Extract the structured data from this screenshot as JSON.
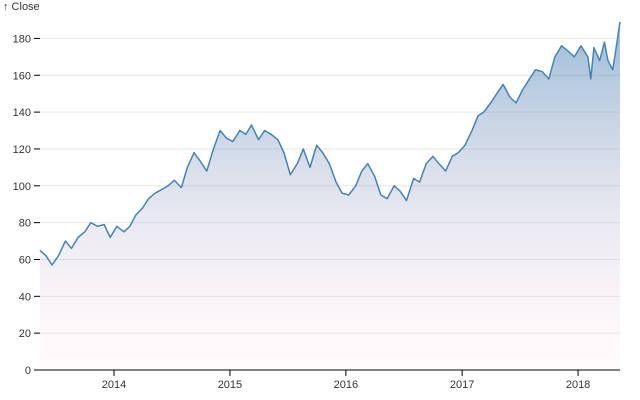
{
  "chart_data": {
    "type": "area",
    "title": "",
    "ylabel": "↑ Close",
    "xlabel": "",
    "ylim": [
      0,
      190
    ],
    "xlim": [
      "2013-05-13",
      "2018-05-13"
    ],
    "y_ticks": [
      0,
      20,
      40,
      60,
      80,
      100,
      120,
      140,
      160,
      180
    ],
    "x_ticks": [
      {
        "date": "2014-01-01",
        "label": "2014"
      },
      {
        "date": "2015-01-01",
        "label": "2015"
      },
      {
        "date": "2016-01-01",
        "label": "2016"
      },
      {
        "date": "2017-01-01",
        "label": "2017"
      },
      {
        "date": "2018-01-01",
        "label": "2018"
      }
    ],
    "grid": true,
    "colors": {
      "line": "#4682b4",
      "fill_top": "#4682b4",
      "fill_bottom": "#ffd1dc"
    },
    "series": [
      {
        "x": [
          "2013-05-13",
          "2013-06-01",
          "2013-06-20",
          "2013-07-10",
          "2013-08-01",
          "2013-08-20",
          "2013-09-10",
          "2013-10-01",
          "2013-10-20",
          "2013-11-10",
          "2013-12-01",
          "2013-12-20",
          "2014-01-10",
          "2014-02-01",
          "2014-02-20",
          "2014-03-10",
          "2014-04-01",
          "2014-04-20",
          "2014-05-10",
          "2014-06-01",
          "2014-06-20",
          "2014-07-10",
          "2014-08-01",
          "2014-08-20",
          "2014-09-10",
          "2014-10-01",
          "2014-10-20",
          "2014-11-10",
          "2014-12-01",
          "2014-12-20",
          "2015-01-10",
          "2015-02-01",
          "2015-02-20",
          "2015-03-10",
          "2015-04-01",
          "2015-04-20",
          "2015-05-10",
          "2015-06-01",
          "2015-06-20",
          "2015-07-10",
          "2015-08-01",
          "2015-08-20",
          "2015-09-10",
          "2015-10-01",
          "2015-10-20",
          "2015-11-10",
          "2015-12-01",
          "2015-12-20",
          "2016-01-10",
          "2016-02-01",
          "2016-02-20",
          "2016-03-10",
          "2016-04-01",
          "2016-04-20",
          "2016-05-10",
          "2016-06-01",
          "2016-06-20",
          "2016-07-10",
          "2016-08-01",
          "2016-08-20",
          "2016-09-10",
          "2016-10-01",
          "2016-10-20",
          "2016-11-10",
          "2016-12-01",
          "2016-12-20",
          "2017-01-10",
          "2017-02-01",
          "2017-02-20",
          "2017-03-10",
          "2017-04-01",
          "2017-04-20",
          "2017-05-10",
          "2017-06-01",
          "2017-06-20",
          "2017-07-10",
          "2017-08-01",
          "2017-08-20",
          "2017-09-10",
          "2017-10-01",
          "2017-10-20",
          "2017-11-10",
          "2017-12-01",
          "2017-12-20",
          "2018-01-10",
          "2018-02-01",
          "2018-02-10",
          "2018-02-20",
          "2018-03-10",
          "2018-03-25",
          "2018-04-05",
          "2018-04-20",
          "2018-05-01",
          "2018-05-13"
        ],
        "values": [
          65,
          62,
          57,
          62,
          70,
          66,
          72,
          75,
          80,
          78,
          79,
          72,
          78,
          75,
          78,
          84,
          88,
          93,
          96,
          98,
          100,
          103,
          99,
          110,
          118,
          113,
          108,
          120,
          130,
          126,
          124,
          130,
          128,
          133,
          125,
          130,
          128,
          125,
          118,
          106,
          112,
          120,
          110,
          122,
          118,
          112,
          102,
          96,
          95,
          100,
          108,
          112,
          105,
          95,
          93,
          100,
          97,
          92,
          104,
          102,
          112,
          116,
          112,
          108,
          116,
          118,
          122,
          130,
          138,
          140,
          145,
          150,
          155,
          148,
          145,
          152,
          158,
          163,
          162,
          158,
          170,
          176,
          173,
          170,
          176,
          170,
          158,
          175,
          168,
          178,
          168,
          163,
          175,
          189
        ]
      }
    ]
  }
}
